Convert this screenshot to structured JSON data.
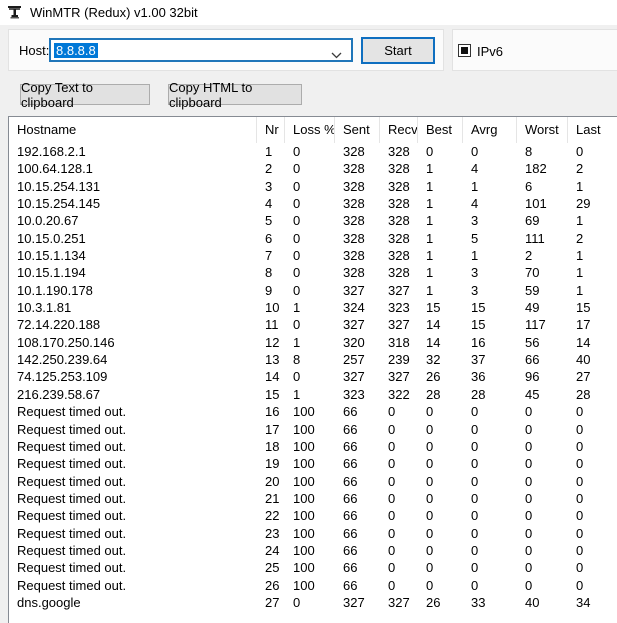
{
  "window": {
    "title": "WinMTR (Redux) v1.00 32bit",
    "icon": "winmtr-app-icon"
  },
  "host_panel": {
    "host_label": "Host:",
    "host_value": "8.8.8.8",
    "start_label": "Start",
    "ipv6_label": "IPv6",
    "ipv6_checked": "indeterminate",
    "combo_icon": "chevron-down-icon"
  },
  "toolbar": {
    "copy_text_label": "Copy Text to clipboard",
    "copy_html_label": "Copy HTML to clipboard"
  },
  "table": {
    "columns": [
      "Hostname",
      "Nr",
      "Loss %",
      "Sent",
      "Recv",
      "Best",
      "Avrg",
      "Worst",
      "Last"
    ],
    "column_keys": [
      "hostname",
      "nr",
      "loss",
      "sent",
      "recv",
      "best",
      "avrg",
      "worst",
      "last"
    ],
    "rows": [
      [
        "192.168.2.1",
        "1",
        "0",
        "328",
        "328",
        "0",
        "0",
        "8",
        "0"
      ],
      [
        "100.64.128.1",
        "2",
        "0",
        "328",
        "328",
        "1",
        "4",
        "182",
        "2"
      ],
      [
        "10.15.254.131",
        "3",
        "0",
        "328",
        "328",
        "1",
        "1",
        "6",
        "1"
      ],
      [
        "10.15.254.145",
        "4",
        "0",
        "328",
        "328",
        "1",
        "4",
        "101",
        "29"
      ],
      [
        "10.0.20.67",
        "5",
        "0",
        "328",
        "328",
        "1",
        "3",
        "69",
        "1"
      ],
      [
        "10.15.0.251",
        "6",
        "0",
        "328",
        "328",
        "1",
        "5",
        "111",
        "2"
      ],
      [
        "10.15.1.134",
        "7",
        "0",
        "328",
        "328",
        "1",
        "1",
        "2",
        "1"
      ],
      [
        "10.15.1.194",
        "8",
        "0",
        "328",
        "328",
        "1",
        "3",
        "70",
        "1"
      ],
      [
        "10.1.190.178",
        "9",
        "0",
        "327",
        "327",
        "1",
        "3",
        "59",
        "1"
      ],
      [
        "10.3.1.81",
        "10",
        "1",
        "324",
        "323",
        "15",
        "15",
        "49",
        "15"
      ],
      [
        "72.14.220.188",
        "11",
        "0",
        "327",
        "327",
        "14",
        "15",
        "117",
        "17"
      ],
      [
        "108.170.250.146",
        "12",
        "1",
        "320",
        "318",
        "14",
        "16",
        "56",
        "14"
      ],
      [
        "142.250.239.64",
        "13",
        "8",
        "257",
        "239",
        "32",
        "37",
        "66",
        "40"
      ],
      [
        "74.125.253.109",
        "14",
        "0",
        "327",
        "327",
        "26",
        "36",
        "96",
        "27"
      ],
      [
        "216.239.58.67",
        "15",
        "1",
        "323",
        "322",
        "28",
        "28",
        "45",
        "28"
      ],
      [
        "Request timed out.",
        "16",
        "100",
        "66",
        "0",
        "0",
        "0",
        "0",
        "0"
      ],
      [
        "Request timed out.",
        "17",
        "100",
        "66",
        "0",
        "0",
        "0",
        "0",
        "0"
      ],
      [
        "Request timed out.",
        "18",
        "100",
        "66",
        "0",
        "0",
        "0",
        "0",
        "0"
      ],
      [
        "Request timed out.",
        "19",
        "100",
        "66",
        "0",
        "0",
        "0",
        "0",
        "0"
      ],
      [
        "Request timed out.",
        "20",
        "100",
        "66",
        "0",
        "0",
        "0",
        "0",
        "0"
      ],
      [
        "Request timed out.",
        "21",
        "100",
        "66",
        "0",
        "0",
        "0",
        "0",
        "0"
      ],
      [
        "Request timed out.",
        "22",
        "100",
        "66",
        "0",
        "0",
        "0",
        "0",
        "0"
      ],
      [
        "Request timed out.",
        "23",
        "100",
        "66",
        "0",
        "0",
        "0",
        "0",
        "0"
      ],
      [
        "Request timed out.",
        "24",
        "100",
        "66",
        "0",
        "0",
        "0",
        "0",
        "0"
      ],
      [
        "Request timed out.",
        "25",
        "100",
        "66",
        "0",
        "0",
        "0",
        "0",
        "0"
      ],
      [
        "Request timed out.",
        "26",
        "100",
        "66",
        "0",
        "0",
        "0",
        "0",
        "0"
      ],
      [
        "dns.google",
        "27",
        "0",
        "327",
        "327",
        "26",
        "33",
        "40",
        "34"
      ]
    ]
  },
  "colors": {
    "accent": "#0078d7",
    "selection_bg": "#0078d7",
    "selection_text": "#ffffff",
    "button_face": "#e1e1e1",
    "button_border": "#acacac",
    "window_bg": "#f0f0f0",
    "table_border": "#868b93"
  }
}
